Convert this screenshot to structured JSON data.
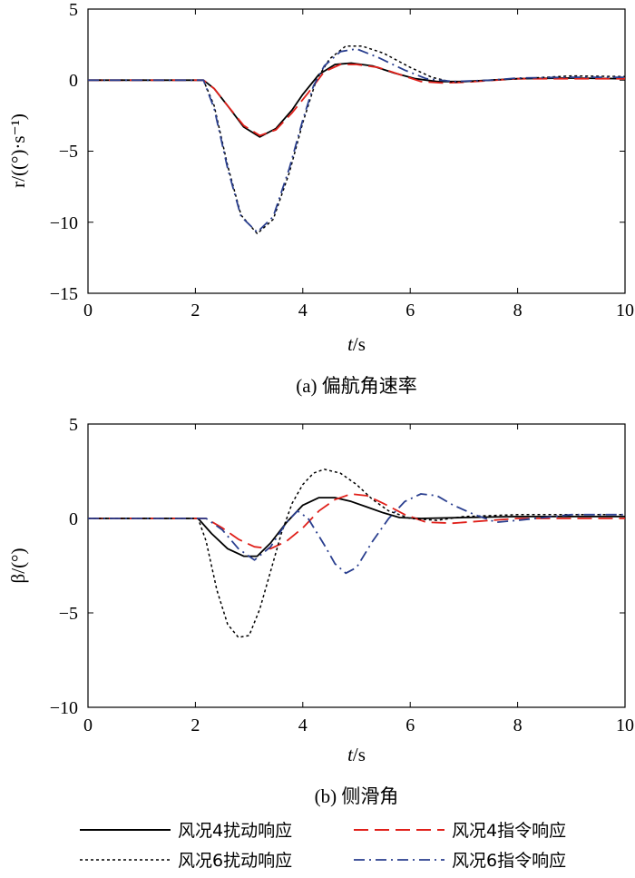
{
  "chart_data": [
    {
      "type": "line",
      "caption": "(a) 偏航角速率",
      "xlabel_italic": "t",
      "xlabel_unit": "/s",
      "ylabel": "r/((°)·s⁻¹)",
      "xlim": [
        0,
        10
      ],
      "ylim": [
        -15,
        5
      ],
      "xticks": [
        "0",
        "2",
        "4",
        "6",
        "8",
        "10"
      ],
      "yticks": [
        "5",
        "0",
        "−5",
        "−10",
        "−15"
      ],
      "grid": false,
      "series": [
        {
          "name": "风况4扰动响应",
          "color": "#000000",
          "dash": "solid",
          "points": [
            [
              0,
              0
            ],
            [
              2.15,
              0
            ],
            [
              2.35,
              -0.6
            ],
            [
              2.6,
              -1.8
            ],
            [
              2.9,
              -3.3
            ],
            [
              3.2,
              -4.0
            ],
            [
              3.5,
              -3.4
            ],
            [
              3.8,
              -2.1
            ],
            [
              4.0,
              -1.0
            ],
            [
              4.3,
              0.4
            ],
            [
              4.6,
              1.1
            ],
            [
              4.9,
              1.2
            ],
            [
              5.3,
              1.0
            ],
            [
              5.7,
              0.5
            ],
            [
              6.1,
              0.1
            ],
            [
              6.5,
              -0.1
            ],
            [
              7.0,
              -0.1
            ],
            [
              8.0,
              0.1
            ],
            [
              9.0,
              0.15
            ],
            [
              10,
              0.1
            ]
          ]
        },
        {
          "name": "风况4指令响应",
          "color": "#e0201a",
          "dash": "long",
          "points": [
            [
              0,
              0
            ],
            [
              2.15,
              0
            ],
            [
              2.35,
              -0.6
            ],
            [
              2.6,
              -1.8
            ],
            [
              2.9,
              -3.2
            ],
            [
              3.2,
              -3.9
            ],
            [
              3.5,
              -3.5
            ],
            [
              3.8,
              -2.3
            ],
            [
              4.1,
              -0.9
            ],
            [
              4.4,
              0.6
            ],
            [
              4.7,
              1.1
            ],
            [
              5.0,
              1.1
            ],
            [
              5.4,
              0.9
            ],
            [
              5.8,
              0.4
            ],
            [
              6.2,
              -0.1
            ],
            [
              6.6,
              -0.2
            ],
            [
              7.0,
              -0.15
            ],
            [
              8.0,
              0.1
            ],
            [
              9.0,
              0.1
            ],
            [
              10,
              0.1
            ]
          ]
        },
        {
          "name": "风况6扰动响应",
          "color": "#000000",
          "dash": "dot",
          "points": [
            [
              0,
              0
            ],
            [
              2.15,
              0
            ],
            [
              2.35,
              -1.8
            ],
            [
              2.6,
              -6.0
            ],
            [
              2.85,
              -9.5
            ],
            [
              3.15,
              -10.8
            ],
            [
              3.45,
              -9.8
            ],
            [
              3.75,
              -6.5
            ],
            [
              4.0,
              -3.0
            ],
            [
              4.25,
              0.0
            ],
            [
              4.5,
              1.5
            ],
            [
              4.8,
              2.4
            ],
            [
              5.1,
              2.4
            ],
            [
              5.5,
              1.9
            ],
            [
              6.0,
              0.9
            ],
            [
              6.4,
              0.2
            ],
            [
              6.8,
              -0.15
            ],
            [
              7.5,
              0.0
            ],
            [
              8.0,
              0.1
            ],
            [
              9.0,
              0.3
            ],
            [
              10,
              0.25
            ]
          ]
        },
        {
          "name": "风况6指令响应",
          "color": "#2a3f8f",
          "dash": "dashdot",
          "points": [
            [
              0,
              0
            ],
            [
              2.15,
              0
            ],
            [
              2.35,
              -2.0
            ],
            [
              2.6,
              -6.2
            ],
            [
              2.85,
              -9.6
            ],
            [
              3.15,
              -10.7
            ],
            [
              3.45,
              -9.6
            ],
            [
              3.75,
              -6.2
            ],
            [
              4.0,
              -2.8
            ],
            [
              4.2,
              -0.4
            ],
            [
              4.4,
              1.0
            ],
            [
              4.7,
              2.0
            ],
            [
              5.0,
              2.2
            ],
            [
              5.4,
              1.6
            ],
            [
              5.9,
              0.7
            ],
            [
              6.3,
              0.1
            ],
            [
              6.8,
              -0.1
            ],
            [
              7.5,
              0.0
            ],
            [
              8.0,
              0.15
            ],
            [
              9.0,
              0.2
            ],
            [
              10,
              0.2
            ]
          ]
        }
      ]
    },
    {
      "type": "line",
      "caption": "(b) 侧滑角",
      "xlabel_italic": "t",
      "xlabel_unit": "/s",
      "ylabel": "β/(°)",
      "xlim": [
        0,
        10
      ],
      "ylim": [
        -10,
        5
      ],
      "xticks": [
        "0",
        "2",
        "4",
        "6",
        "8",
        "10"
      ],
      "yticks": [
        "5",
        "0",
        "−5",
        "−10"
      ],
      "grid": false,
      "series": [
        {
          "name": "风况4扰动响应",
          "color": "#000000",
          "dash": "solid",
          "points": [
            [
              0,
              0
            ],
            [
              2.05,
              0
            ],
            [
              2.3,
              -0.8
            ],
            [
              2.6,
              -1.6
            ],
            [
              2.9,
              -2.0
            ],
            [
              3.15,
              -2.0
            ],
            [
              3.4,
              -1.3
            ],
            [
              3.7,
              -0.2
            ],
            [
              4.0,
              0.7
            ],
            [
              4.3,
              1.1
            ],
            [
              4.6,
              1.1
            ],
            [
              4.9,
              0.9
            ],
            [
              5.2,
              0.6
            ],
            [
              5.5,
              0.3
            ],
            [
              5.8,
              0.05
            ],
            [
              6.2,
              0.0
            ],
            [
              7.0,
              0.05
            ],
            [
              8.0,
              0.1
            ],
            [
              9.0,
              0.1
            ],
            [
              10,
              0.1
            ]
          ]
        },
        {
          "name": "风况4指令响应",
          "color": "#e0201a",
          "dash": "long",
          "points": [
            [
              0,
              0
            ],
            [
              2.2,
              0
            ],
            [
              2.5,
              -0.5
            ],
            [
              2.8,
              -1.1
            ],
            [
              3.1,
              -1.5
            ],
            [
              3.4,
              -1.6
            ],
            [
              3.7,
              -1.2
            ],
            [
              4.0,
              -0.5
            ],
            [
              4.3,
              0.4
            ],
            [
              4.6,
              1.0
            ],
            [
              4.9,
              1.3
            ],
            [
              5.2,
              1.2
            ],
            [
              5.5,
              0.8
            ],
            [
              5.9,
              0.2
            ],
            [
              6.3,
              -0.2
            ],
            [
              6.8,
              -0.25
            ],
            [
              7.5,
              -0.1
            ],
            [
              8.0,
              0.0
            ],
            [
              9.0,
              0.0
            ],
            [
              10,
              0.0
            ]
          ]
        },
        {
          "name": "风况6扰动响应",
          "color": "#000000",
          "dash": "dot",
          "points": [
            [
              0,
              0
            ],
            [
              2.05,
              0
            ],
            [
              2.2,
              -1.2
            ],
            [
              2.4,
              -3.8
            ],
            [
              2.6,
              -5.6
            ],
            [
              2.8,
              -6.3
            ],
            [
              3.0,
              -6.2
            ],
            [
              3.2,
              -4.8
            ],
            [
              3.4,
              -2.8
            ],
            [
              3.6,
              -0.8
            ],
            [
              3.8,
              0.8
            ],
            [
              4.0,
              1.8
            ],
            [
              4.2,
              2.4
            ],
            [
              4.4,
              2.6
            ],
            [
              4.7,
              2.4
            ],
            [
              5.0,
              1.8
            ],
            [
              5.3,
              1.0
            ],
            [
              5.6,
              0.4
            ],
            [
              6.0,
              0.0
            ],
            [
              6.5,
              -0.1
            ],
            [
              7.0,
              0.1
            ],
            [
              8.0,
              0.2
            ],
            [
              9.0,
              0.2
            ],
            [
              10,
              0.2
            ]
          ]
        },
        {
          "name": "风况6指令响应",
          "color": "#2a3f8f",
          "dash": "dashdot",
          "points": [
            [
              0,
              0
            ],
            [
              2.2,
              0
            ],
            [
              2.5,
              -0.6
            ],
            [
              2.8,
              -1.6
            ],
            [
              3.1,
              -2.2
            ],
            [
              3.4,
              -1.5
            ],
            [
              3.7,
              -0.2
            ],
            [
              3.9,
              0.4
            ],
            [
              4.1,
              0.0
            ],
            [
              4.4,
              -1.4
            ],
            [
              4.6,
              -2.4
            ],
            [
              4.8,
              -2.9
            ],
            [
              5.0,
              -2.6
            ],
            [
              5.3,
              -1.2
            ],
            [
              5.6,
              0.0
            ],
            [
              5.9,
              0.9
            ],
            [
              6.2,
              1.3
            ],
            [
              6.5,
              1.2
            ],
            [
              6.8,
              0.7
            ],
            [
              7.2,
              0.2
            ],
            [
              7.6,
              -0.2
            ],
            [
              8.0,
              -0.1
            ],
            [
              9.0,
              0.2
            ],
            [
              10,
              0.2
            ]
          ]
        }
      ]
    }
  ],
  "legend": {
    "items": [
      {
        "label": "风况4扰动响应",
        "color": "#000000",
        "dash": "solid"
      },
      {
        "label": "风况4指令响应",
        "color": "#e0201a",
        "dash": "long"
      },
      {
        "label": "风况6扰动响应",
        "color": "#000000",
        "dash": "dot"
      },
      {
        "label": "风况6指令响应",
        "color": "#2a3f8f",
        "dash": "dashdot"
      }
    ]
  }
}
